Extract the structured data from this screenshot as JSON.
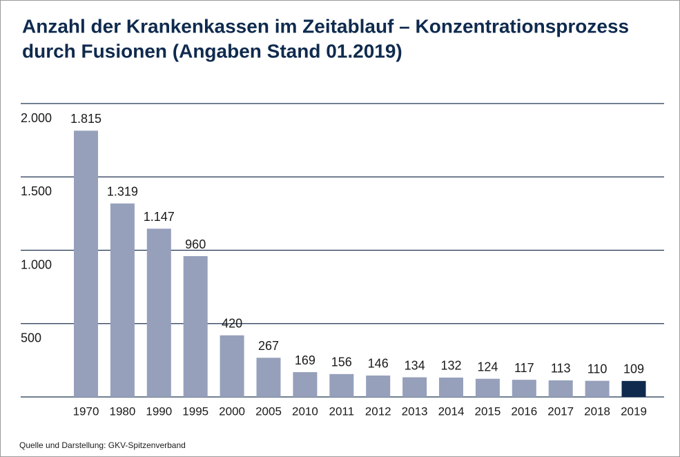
{
  "chart_data": {
    "type": "bar",
    "title": [
      "Anzahl der Krankenkassen im Zeitablauf – Konzentrationsprozess",
      "durch Fusionen (Angaben Stand 01.2019)"
    ],
    "source": "Quelle und Darstellung: GKV-Spitzenverband",
    "categories": [
      "1970",
      "1980",
      "1990",
      "1995",
      "2000",
      "2005",
      "2010",
      "2011",
      "2012",
      "2013",
      "2014",
      "2015",
      "2016",
      "2017",
      "2018",
      "2019"
    ],
    "values": [
      1815,
      1319,
      1147,
      960,
      420,
      267,
      169,
      156,
      146,
      134,
      132,
      124,
      117,
      113,
      110,
      109
    ],
    "value_labels": [
      "1.815",
      "1.319",
      "1.147",
      "960",
      "420",
      "267",
      "169",
      "156",
      "146",
      "134",
      "132",
      "124",
      "117",
      "113",
      "110",
      "109"
    ],
    "colors": [
      "#96a0bb",
      "#96a0bb",
      "#96a0bb",
      "#96a0bb",
      "#96a0bb",
      "#96a0bb",
      "#96a0bb",
      "#96a0bb",
      "#96a0bb",
      "#96a0bb",
      "#96a0bb",
      "#96a0bb",
      "#96a0bb",
      "#96a0bb",
      "#96a0bb",
      "#0f2a4e"
    ],
    "ylim": [
      0,
      2000
    ],
    "yticks": [
      {
        "value": 500,
        "label": "500"
      },
      {
        "value": 1000,
        "label": "1.000"
      },
      {
        "value": 1500,
        "label": "1.500"
      },
      {
        "value": 2000,
        "label": "2.000"
      }
    ],
    "grid": true
  }
}
